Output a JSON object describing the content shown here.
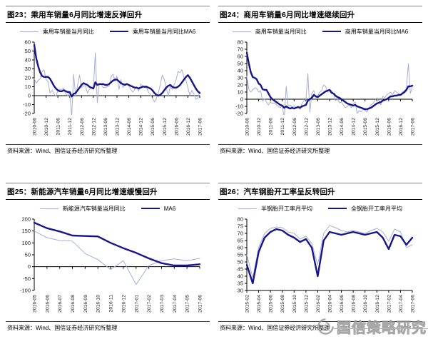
{
  "source_note": "资料来源：Wind、国信证券经济研究所整理",
  "watermark_text": "国信策略研究",
  "colors": {
    "thin_line": "#a8aed6",
    "thick_line": "#15158c",
    "axis": "#000000",
    "rule_light": "#808080",
    "rule_dark": "#000000",
    "watermark": "#9a9a9a"
  },
  "chart_data": [
    {
      "type": "line",
      "title_full": "图23：乘用车销量6月同比增速反弹回升",
      "ylim": [
        -20,
        60
      ],
      "y_ticks": [
        60,
        50,
        40,
        30,
        20,
        10,
        0,
        -10,
        -20
      ],
      "axis_at": 0,
      "grid": false,
      "legend_position": "top",
      "x_tick_every": 6,
      "x_tick_labels": [
        "2010-06",
        "2010-12",
        "2011-06",
        "2011-12",
        "2012-06",
        "2012-12",
        "2013-06",
        "2013-12",
        "2014-06",
        "2014-12",
        "2015-06",
        "2015-12",
        "2016-06",
        "2016-12",
        "2017-06"
      ],
      "series": [
        {
          "name": "乘用车销量当月同比",
          "style": "thin",
          "values": [
            19,
            14,
            17,
            19,
            27,
            29,
            18,
            16,
            3,
            6,
            2,
            -1,
            6,
            7,
            7,
            8,
            2,
            0,
            4,
            -24,
            24,
            -1,
            12,
            23,
            9,
            11,
            11,
            3,
            7,
            9,
            7,
            48,
            -8,
            13,
            13,
            9,
            9,
            10,
            11,
            21,
            24,
            16,
            22,
            7,
            18,
            9,
            13,
            14,
            11,
            7,
            4,
            7,
            10,
            5,
            13,
            11,
            9,
            9,
            4,
            1,
            -3,
            -7,
            -3,
            3,
            13,
            23,
            18,
            9,
            -1,
            10,
            7,
            12,
            18,
            27,
            26,
            29,
            20,
            17,
            9,
            0,
            6,
            2,
            -4,
            -3,
            4
          ]
        },
        {
          "name": "乘用车销量当月同比MA6",
          "style": "thick",
          "values": [
            57,
            42,
            33,
            26,
            22,
            21,
            21,
            21,
            19,
            15,
            11,
            8,
            6,
            5,
            5,
            6,
            5,
            4,
            4,
            -1,
            2,
            3,
            6,
            9,
            12,
            14,
            13,
            12,
            10,
            9,
            8,
            15,
            12,
            13,
            13,
            13,
            12,
            12,
            13,
            15,
            17,
            18,
            18,
            16,
            14,
            13,
            12,
            13,
            12,
            11,
            10,
            9,
            9,
            8,
            9,
            10,
            10,
            10,
            9,
            8,
            6,
            3,
            1,
            0,
            1,
            3,
            6,
            9,
            11,
            12,
            10,
            9,
            9,
            10,
            12,
            15,
            18,
            21,
            23,
            20,
            16,
            12,
            8,
            5,
            3
          ]
        }
      ]
    },
    {
      "type": "line",
      "title_full": "图24：商用车销量6月同比增速继续回升",
      "ylim": [
        -20,
        80
      ],
      "y_ticks": [
        80,
        70,
        60,
        50,
        40,
        30,
        20,
        10,
        0,
        -10,
        -20
      ],
      "axis_at": 0,
      "grid": false,
      "legend_position": "top",
      "x_tick_every": 6,
      "x_tick_labels": [
        "2010-06",
        "2010-12",
        "2011-06",
        "2011-12",
        "2012-06",
        "2012-12",
        "2013-06",
        "2013-12",
        "2014-06",
        "2014-12",
        "2015-06",
        "2015-12",
        "2016-06",
        "2016-12",
        "2017-06"
      ],
      "series": [
        {
          "name": "商用车销量当月同比",
          "style": "thin",
          "values": [
            32,
            14,
            10,
            13,
            16,
            15,
            10,
            12,
            -3,
            1,
            -4,
            -8,
            -4,
            -6,
            -5,
            -8,
            -10,
            -12,
            -8,
            -28,
            18,
            -10,
            -8,
            -11,
            -9,
            -12,
            -10,
            -14,
            -6,
            -2,
            0,
            36,
            -18,
            8,
            12,
            2,
            5,
            10,
            12,
            20,
            18,
            10,
            14,
            12,
            8,
            -2,
            0,
            -5,
            -4,
            -8,
            -12,
            -10,
            -8,
            -12,
            -6,
            -4,
            -20,
            -16,
            -18,
            -14,
            -16,
            -18,
            -12,
            -8,
            -6,
            -2,
            2,
            -2,
            -8,
            4,
            2,
            6,
            8,
            10,
            6,
            12,
            10,
            8,
            6,
            10,
            12,
            15,
            50,
            8,
            17
          ]
        },
        {
          "name": "商用车销量当月同比MA6",
          "style": "thick",
          "values": [
            65,
            50,
            38,
            31,
            30,
            28,
            22,
            20,
            14,
            13,
            13,
            8,
            3,
            0,
            -2,
            -4,
            -6,
            -8,
            -9,
            -12,
            -10,
            -12,
            -13,
            -12,
            -13,
            -12,
            -11,
            -12,
            -10,
            -9,
            -8,
            -2,
            0,
            2,
            6,
            4,
            3,
            5,
            7,
            9,
            11,
            12,
            13,
            9,
            8,
            5,
            3,
            2,
            0,
            -2,
            -4,
            -6,
            -7,
            -8,
            -9,
            -8,
            -10,
            -11,
            -12,
            -13,
            -14,
            -14,
            -13,
            -12,
            -10,
            -8,
            -6,
            -5,
            -4,
            -2,
            -1,
            0,
            2,
            4,
            4,
            5,
            5,
            6,
            6,
            8,
            10,
            13,
            18,
            18,
            19
          ]
        }
      ]
    },
    {
      "type": "line",
      "title_full": "图25：新能源汽车销量6月同比增速缓慢回升",
      "ylim": [
        -100,
        200
      ],
      "y_ticks": [
        200,
        150,
        100,
        50,
        0,
        -50,
        -100
      ],
      "axis_at": 0,
      "grid": false,
      "legend_position": "top",
      "x_tick_every": 1,
      "x_tick_labels": [
        "2016-05",
        "2016-06",
        "2016-07",
        "2016-08",
        "2016-09",
        "2016-10",
        "2016-11",
        "2016-12",
        "2017-01",
        "2017-02",
        "2017-03",
        "2017-04",
        "2017-05",
        "2017-06"
      ],
      "series": [
        {
          "name": "新能源汽车销量当月同比",
          "style": "thin",
          "values": [
            150,
            122,
            110,
            108,
            55,
            30,
            -12,
            25,
            -75,
            5,
            25,
            33,
            25,
            35
          ]
        },
        {
          "name": "MA6",
          "style": "thick",
          "values": [
            185,
            162,
            148,
            131,
            129,
            127,
            100,
            78,
            58,
            35,
            15,
            5,
            5,
            10
          ]
        }
      ]
    },
    {
      "type": "line",
      "title_full": "图26：汽车钢胎开工率呈反转回升",
      "ylim": [
        30,
        80
      ],
      "y_ticks": [
        80,
        75,
        70,
        65,
        60,
        55,
        50,
        45,
        40,
        35,
        30
      ],
      "axis_at": 30,
      "grid": false,
      "legend_position": "top",
      "x_tick_every": 2,
      "x_tick_labels": [
        "2015-02",
        "2015-04",
        "2015-06",
        "2015-08",
        "2015-10",
        "2015-12",
        "2016-02",
        "2016-04",
        "2016-06",
        "2016-08",
        "2016-10",
        "2016-12",
        "2017-02",
        "2017-04",
        "2017-06"
      ],
      "series": [
        {
          "name": "半钢胎开工率月平均",
          "style": "thin",
          "values": [
            55,
            39,
            60,
            70,
            73.5,
            74.5,
            74,
            71,
            70,
            66,
            68,
            63,
            48,
            70,
            75.5,
            74,
            72,
            71,
            72,
            71,
            70,
            72,
            73.5,
            71,
            64.5,
            73,
            71,
            60,
            62
          ]
        },
        {
          "name": "全钢胎开工率月平均",
          "style": "thick",
          "values": [
            48,
            35,
            57,
            67,
            71,
            73,
            72,
            69,
            67,
            64,
            66,
            60,
            40,
            65,
            71,
            70,
            69,
            70,
            71,
            70,
            69,
            70,
            71,
            67,
            59,
            69,
            68,
            62,
            67
          ]
        }
      ]
    }
  ]
}
